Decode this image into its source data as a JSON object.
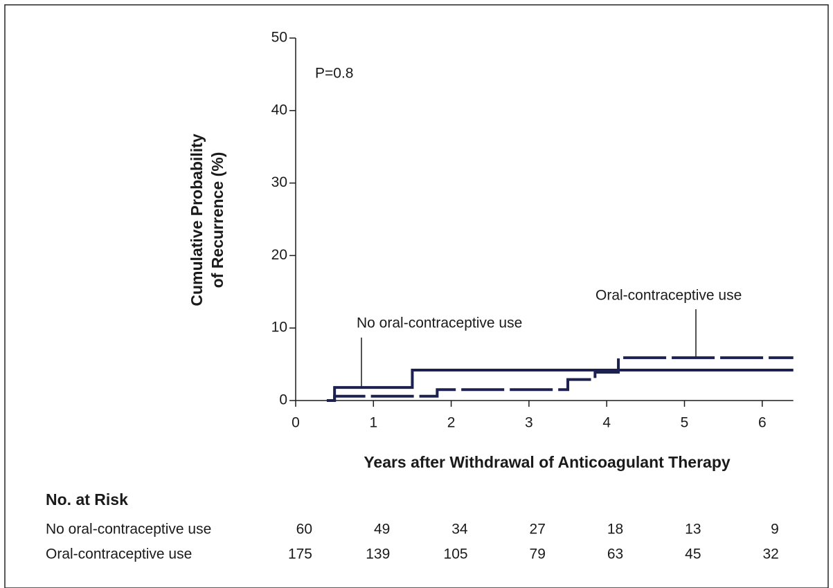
{
  "chart_data": {
    "type": "step",
    "annotations": [
      "P=0.8"
    ],
    "xlabel": "Years after Withdrawal of Anticoagulant Therapy",
    "ylabel": [
      "Cumulative Probability",
      "of Recurrence (%)"
    ],
    "xlim": [
      0,
      6.4
    ],
    "ylim": [
      0,
      50
    ],
    "xticks": [
      0,
      1,
      2,
      3,
      4,
      5,
      6
    ],
    "yticks": [
      0,
      10,
      20,
      30,
      40,
      50
    ],
    "series": [
      {
        "name": "No oral-contraceptive use",
        "color": "#1c2150",
        "dash": false,
        "x": [
          0.45,
          0.5,
          1.5,
          6.4
        ],
        "values": [
          0,
          1.8,
          4.2,
          4.2
        ]
      },
      {
        "name": "Oral-contraceptive use",
        "color": "#1c2150",
        "dash": true,
        "x": [
          0.4,
          0.5,
          1.82,
          3.5,
          3.85,
          4.15,
          6.4
        ],
        "values": [
          0,
          0.6,
          1.5,
          2.9,
          3.9,
          5.9,
          5.9
        ]
      }
    ],
    "at_risk": {
      "title": "No. at Risk",
      "rows": [
        {
          "name": "No oral-contraceptive use",
          "values": [
            60,
            49,
            34,
            27,
            18,
            13,
            9
          ]
        },
        {
          "name": "Oral-contraceptive use",
          "values": [
            175,
            139,
            105,
            79,
            63,
            45,
            32
          ]
        }
      ]
    }
  }
}
